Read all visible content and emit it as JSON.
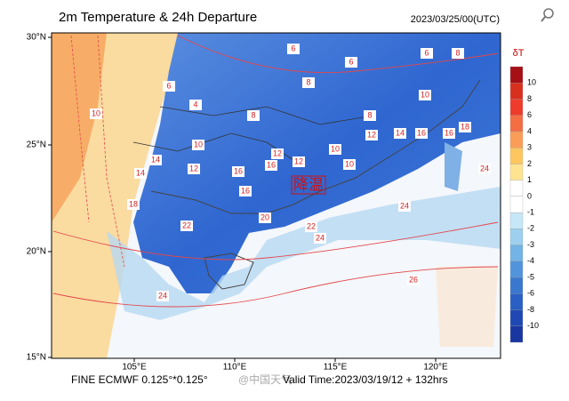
{
  "header": {
    "title": "2m Temperature & 24h Departure",
    "datetime": "2023/03/25/00(UTC)"
  },
  "axes": {
    "lat_labels": [
      "30°N",
      "25°N",
      "20°N",
      "15°N"
    ],
    "lon_labels": [
      "105°E",
      "110°E",
      "115°E",
      "120°E"
    ]
  },
  "legend": {
    "title": "δT",
    "labels": [
      "10",
      "8",
      "6",
      "4",
      "3",
      "2",
      "1",
      "0",
      "-1",
      "-2",
      "-3",
      "-4",
      "-5",
      "-6",
      "-8",
      "-10"
    ],
    "colors": [
      "#a50f15",
      "#d7301f",
      "#ef3b2c",
      "#f46d43",
      "#f99d59",
      "#fdc65f",
      "#fee491",
      "#ffffff",
      "#ffffff",
      "#c6e7f7",
      "#9dd0ef",
      "#74b3e6",
      "#5294db",
      "#3a78cf",
      "#2a5fc4",
      "#1f48b5",
      "#1a36a0"
    ]
  },
  "overlay": {
    "label": "降温"
  },
  "contour_labels": [
    "6",
    "6",
    "6",
    "8",
    "8",
    "4",
    "6",
    "8",
    "10",
    "12",
    "10",
    "8",
    "10",
    "12",
    "14",
    "16",
    "12",
    "14",
    "16",
    "12",
    "16",
    "18",
    "16",
    "20",
    "22",
    "24",
    "24",
    "24",
    "26",
    "24",
    "22",
    "18",
    "14",
    "16",
    "10",
    "10"
  ],
  "footer": {
    "model": "FINE ECMWF 0.125°*0.125°",
    "valid": "Valid Time:2023/03/19/12 + 132hrs",
    "watermark": "@中国天气"
  }
}
